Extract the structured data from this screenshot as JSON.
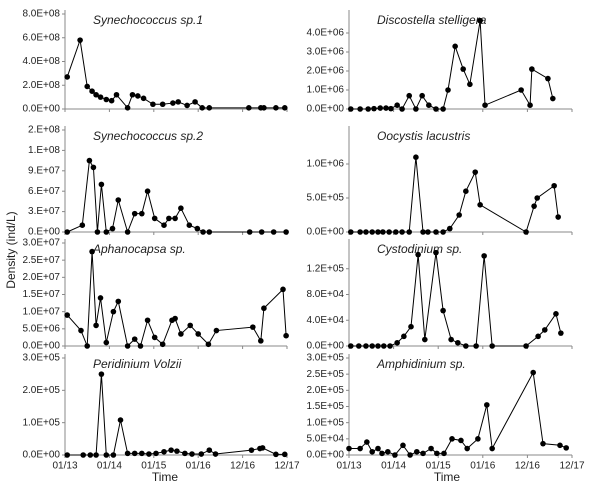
{
  "ylabel": "Density (ind/L)",
  "xlabel": "Time",
  "chart_data": [
    {
      "type": "line",
      "title": "Synechococcus sp.1",
      "color": "#000000",
      "x": [
        0.05,
        0.34,
        0.5,
        0.61,
        0.7,
        0.8,
        0.93,
        1.05,
        1.16,
        1.41,
        1.52,
        1.64,
        1.77,
        1.98,
        2.2,
        2.43,
        2.55,
        2.75,
        2.93,
        3.09,
        3.25,
        4.14,
        4.41,
        4.48,
        4.75,
        4.95
      ],
      "values": [
        270000000,
        580000000,
        190000000,
        150000000,
        120000000,
        100000000,
        80000000,
        70000000,
        120000000,
        10000000,
        120000000,
        110000000,
        90000000,
        40000000,
        40000000,
        50000000,
        60000000,
        30000000,
        60000000,
        10000000,
        10000000,
        10000000,
        10000000,
        10000000,
        10000000,
        10000000
      ],
      "ylim": [
        0,
        800000000
      ],
      "yticks": [
        {
          "value": 0,
          "label": "0.0E+00"
        },
        {
          "value": 200000000,
          "label": "2.0E+08"
        },
        {
          "value": 400000000,
          "label": "4.0E+08"
        },
        {
          "value": 600000000,
          "label": "6.0E+08"
        },
        {
          "value": 800000000,
          "label": "8.0E+08"
        }
      ],
      "xlim": [
        0,
        5
      ],
      "xticks": [
        {
          "value": 0,
          "label": "01/13"
        },
        {
          "value": 1,
          "label": "01/14"
        },
        {
          "value": 2,
          "label": "01/15"
        },
        {
          "value": 3,
          "label": "01/16"
        },
        {
          "value": 4,
          "label": "12/16"
        },
        {
          "value": 5,
          "label": "12/17"
        }
      ]
    },
    {
      "type": "line",
      "title": "Discostella stelligera",
      "color": "#000000",
      "x": [
        0.04,
        0.25,
        0.43,
        0.56,
        0.7,
        0.83,
        0.94,
        1.08,
        1.19,
        1.35,
        1.5,
        1.64,
        1.79,
        1.95,
        2.11,
        2.22,
        2.38,
        2.56,
        2.71,
        2.94,
        3.05,
        3.86,
        4.06,
        4.1,
        4.46,
        4.57
      ],
      "values": [
        0,
        0,
        0,
        20000,
        50000,
        50000,
        20000,
        200000,
        0,
        700000,
        0,
        700000,
        200000,
        0,
        0,
        1000000,
        3300000,
        2100000,
        1300000,
        4650000,
        200000,
        1000000,
        200000,
        2100000,
        1600000,
        550000
      ],
      "ylim": [
        0,
        5000000
      ],
      "yticks": [
        {
          "value": 0,
          "label": "0.0E+00"
        },
        {
          "value": 1000000,
          "label": "1.0E+06"
        },
        {
          "value": 2000000,
          "label": "2.0E+06"
        },
        {
          "value": 3000000,
          "label": "3.0E+06"
        },
        {
          "value": 4000000,
          "label": "4.0E+06"
        }
      ],
      "xlim": [
        0,
        5
      ],
      "xticks": [
        {
          "value": 0,
          "label": "01/13"
        },
        {
          "value": 1,
          "label": "01/14"
        },
        {
          "value": 2,
          "label": "01/15"
        },
        {
          "value": 3,
          "label": "01/16"
        },
        {
          "value": 4,
          "label": "12/16"
        },
        {
          "value": 5,
          "label": "12/17"
        }
      ]
    },
    {
      "type": "line",
      "title": "Synechococcus sp.2",
      "color": "#000000",
      "x": [
        0.05,
        0.39,
        0.55,
        0.64,
        0.73,
        0.82,
        0.93,
        1.07,
        1.2,
        1.41,
        1.57,
        1.73,
        1.86,
        2.02,
        2.23,
        2.34,
        2.48,
        2.61,
        2.8,
        2.98,
        3.11,
        3.25,
        4.16,
        4.43,
        4.7,
        4.98
      ],
      "values": [
        0,
        10000000,
        105000000,
        95000000,
        0,
        70000000,
        0,
        5000000,
        47000000,
        0,
        27000000,
        27000000,
        60000000,
        20000000,
        10000000,
        20000000,
        20000000,
        35000000,
        10000000,
        5000000,
        0,
        0,
        0,
        0,
        0,
        0
      ],
      "ylim": [
        0,
        150000000
      ],
      "yticks": [
        {
          "value": 0,
          "label": "0.E+00"
        },
        {
          "value": 30000000,
          "label": "3.E+07"
        },
        {
          "value": 60000000,
          "label": "6.E+07"
        },
        {
          "value": 90000000,
          "label": "9.E+07"
        },
        {
          "value": 120000000,
          "label": "1.E+08"
        },
        {
          "value": 150000000,
          "label": "2.E+08"
        }
      ],
      "xlim": [
        0,
        5
      ],
      "xticks": [
        {
          "value": 0,
          "label": "01/13"
        },
        {
          "value": 1,
          "label": "01/14"
        },
        {
          "value": 2,
          "label": "01/15"
        },
        {
          "value": 3,
          "label": "01/16"
        },
        {
          "value": 4,
          "label": "12/16"
        },
        {
          "value": 5,
          "label": "12/17"
        }
      ]
    },
    {
      "type": "line",
      "title": "Oocystis lacustris",
      "color": "#000000",
      "x": [
        0.04,
        0.25,
        0.38,
        0.52,
        0.65,
        0.76,
        0.9,
        1.05,
        1.19,
        1.35,
        1.5,
        1.66,
        1.77,
        1.95,
        2.11,
        2.26,
        2.47,
        2.62,
        2.83,
        2.94,
        3.97,
        4.15,
        4.22,
        4.6,
        4.69
      ],
      "values": [
        0,
        0,
        0,
        0,
        0,
        0,
        0,
        0,
        0,
        0,
        1100000,
        0,
        0,
        0,
        0,
        50000,
        250000,
        600000,
        880000,
        400000,
        0,
        380000,
        500000,
        680000,
        220000
      ],
      "ylim": [
        0,
        1500000
      ],
      "yticks": [
        {
          "value": 0,
          "label": "0.0E+00"
        },
        {
          "value": 500000,
          "label": "5.0E+05"
        },
        {
          "value": 1000000,
          "label": "1.0E+06"
        }
      ],
      "xlim": [
        0,
        5
      ],
      "xticks": [
        {
          "value": 0,
          "label": "01/13"
        },
        {
          "value": 1,
          "label": "01/14"
        },
        {
          "value": 2,
          "label": "01/15"
        },
        {
          "value": 3,
          "label": "01/16"
        },
        {
          "value": 4,
          "label": "12/16"
        },
        {
          "value": 5,
          "label": "12/17"
        }
      ]
    },
    {
      "type": "line",
      "title": "Aphanocapsa sp.",
      "color": "#000000",
      "x": [
        0.05,
        0.36,
        0.5,
        0.61,
        0.7,
        0.8,
        0.93,
        1.09,
        1.2,
        1.41,
        1.57,
        1.7,
        1.86,
        2.02,
        2.2,
        2.41,
        2.48,
        2.61,
        2.82,
        3,
        3.23,
        3.41,
        4.23,
        4.41,
        4.48,
        4.91,
        4.98
      ],
      "values": [
        9000000,
        4500000,
        0,
        27500000,
        6000000,
        14000000,
        1000000,
        10000000,
        13000000,
        0,
        2000000,
        0,
        7500000,
        2500000,
        500000,
        7500000,
        8000000,
        3500000,
        6000000,
        3500000,
        500000,
        4500000,
        5500000,
        1500000,
        11000000,
        16500000,
        3000000
      ],
      "ylim": [
        0,
        30000000
      ],
      "yticks": [
        {
          "value": 0,
          "label": "0.0E+00"
        },
        {
          "value": 5000000,
          "label": "5.0E+06"
        },
        {
          "value": 10000000,
          "label": "1.0E+07"
        },
        {
          "value": 15000000,
          "label": "1.5E+07"
        },
        {
          "value": 20000000,
          "label": "2.0E+07"
        },
        {
          "value": 25000000,
          "label": "2.5E+07"
        },
        {
          "value": 30000000,
          "label": "3.0E+07"
        }
      ],
      "xlim": [
        0,
        5
      ],
      "xticks": [
        {
          "value": 0,
          "label": "01/13"
        },
        {
          "value": 1,
          "label": "01/14"
        },
        {
          "value": 2,
          "label": "01/15"
        },
        {
          "value": 3,
          "label": "01/16"
        },
        {
          "value": 4,
          "label": "12/16"
        },
        {
          "value": 5,
          "label": "12/17"
        }
      ]
    },
    {
      "type": "line",
      "title": "Cystodinium sp.",
      "color": "#000000",
      "x": [
        0.04,
        0.22,
        0.38,
        0.52,
        0.65,
        0.78,
        0.92,
        1.08,
        1.23,
        1.39,
        1.55,
        1.7,
        1.95,
        2.11,
        2.29,
        2.44,
        2.62,
        2.85,
        3.03,
        3.21,
        3.97,
        4.24,
        4.39,
        4.64,
        4.75
      ],
      "values": [
        0,
        0,
        0,
        0,
        0,
        0,
        0,
        5000,
        15000,
        30000,
        142000,
        10000,
        145000,
        55000,
        10000,
        5000,
        0,
        0,
        140000,
        0,
        0,
        15000,
        25000,
        50000,
        20000
      ],
      "ylim": [
        0,
        160000
      ],
      "yticks": [
        {
          "value": 0,
          "label": "0.0E+00"
        },
        {
          "value": 40000,
          "label": "4.0E+04"
        },
        {
          "value": 80000,
          "label": "8.0E+04"
        },
        {
          "value": 120000,
          "label": "1.2E+05"
        }
      ],
      "xlim": [
        0,
        5
      ],
      "xticks": [
        {
          "value": 0,
          "label": "01/13"
        },
        {
          "value": 1,
          "label": "01/14"
        },
        {
          "value": 2,
          "label": "01/15"
        },
        {
          "value": 3,
          "label": "01/16"
        },
        {
          "value": 4,
          "label": "12/16"
        },
        {
          "value": 5,
          "label": "12/17"
        }
      ]
    },
    {
      "type": "line",
      "title": "Peridinium Volzii",
      "color": "#000000",
      "x": [
        0.05,
        0.41,
        0.57,
        0.7,
        0.82,
        0.93,
        1.09,
        1.25,
        1.41,
        1.57,
        1.73,
        1.89,
        2.05,
        2.23,
        2.39,
        2.52,
        2.7,
        2.86,
        3.07,
        3.25,
        3.39,
        4.2,
        4.39,
        4.45,
        4.75,
        4.95
      ],
      "values": [
        0,
        0,
        0,
        0,
        250000,
        0,
        0,
        108000,
        5000,
        5000,
        5000,
        3000,
        5000,
        10000,
        15000,
        12000,
        5000,
        3000,
        3000,
        15000,
        3000,
        15000,
        20000,
        22000,
        2000,
        2000
      ],
      "ylim": [
        0,
        300000
      ],
      "yticks": [
        {
          "value": 0,
          "label": "0.0E+00"
        },
        {
          "value": 100000,
          "label": "1.0E+05"
        },
        {
          "value": 200000,
          "label": "2.0E+05"
        },
        {
          "value": 300000,
          "label": "3.0E+05"
        }
      ],
      "xlim": [
        0,
        5
      ],
      "xticks": [
        {
          "value": 0,
          "label": "01/13"
        },
        {
          "value": 1,
          "label": "01/14"
        },
        {
          "value": 2,
          "label": "01/15"
        },
        {
          "value": 3,
          "label": "01/16"
        },
        {
          "value": 4,
          "label": "12/16"
        },
        {
          "value": 5,
          "label": "12/17"
        }
      ]
    },
    {
      "type": "line",
      "title": "Amphidinium sp.",
      "color": "#000000",
      "x": [
        0,
        0.25,
        0.4,
        0.52,
        0.65,
        0.74,
        0.87,
        1.03,
        1.21,
        1.37,
        1.52,
        1.66,
        1.84,
        1.97,
        2.13,
        2.31,
        2.51,
        2.65,
        2.89,
        3.09,
        3.21,
        4.13,
        4.35,
        4.73,
        4.87
      ],
      "values": [
        20000,
        20000,
        40000,
        10000,
        20000,
        5000,
        10000,
        0,
        30000,
        0,
        10000,
        5000,
        20000,
        5000,
        5000,
        50000,
        45000,
        20000,
        50000,
        155000,
        20000,
        255000,
        35000,
        30000,
        22000
      ],
      "ylim": [
        0,
        300000
      ],
      "yticks": [
        {
          "value": 0,
          "label": "0.0E+00"
        },
        {
          "value": 50000,
          "label": "5.0E+04"
        },
        {
          "value": 100000,
          "label": "1.0E+05"
        },
        {
          "value": 150000,
          "label": "1.5E+05"
        },
        {
          "value": 200000,
          "label": "2.0E+05"
        },
        {
          "value": 250000,
          "label": "2.5E+05"
        },
        {
          "value": 300000,
          "label": "3.0E+05"
        }
      ],
      "xlim": [
        0,
        5
      ],
      "xticks": [
        {
          "value": 0,
          "label": "01/13"
        },
        {
          "value": 1,
          "label": "01/14"
        },
        {
          "value": 2,
          "label": "01/15"
        },
        {
          "value": 3,
          "label": "01/16"
        },
        {
          "value": 4,
          "label": "12/16"
        },
        {
          "value": 5,
          "label": "12/17"
        }
      ]
    }
  ]
}
